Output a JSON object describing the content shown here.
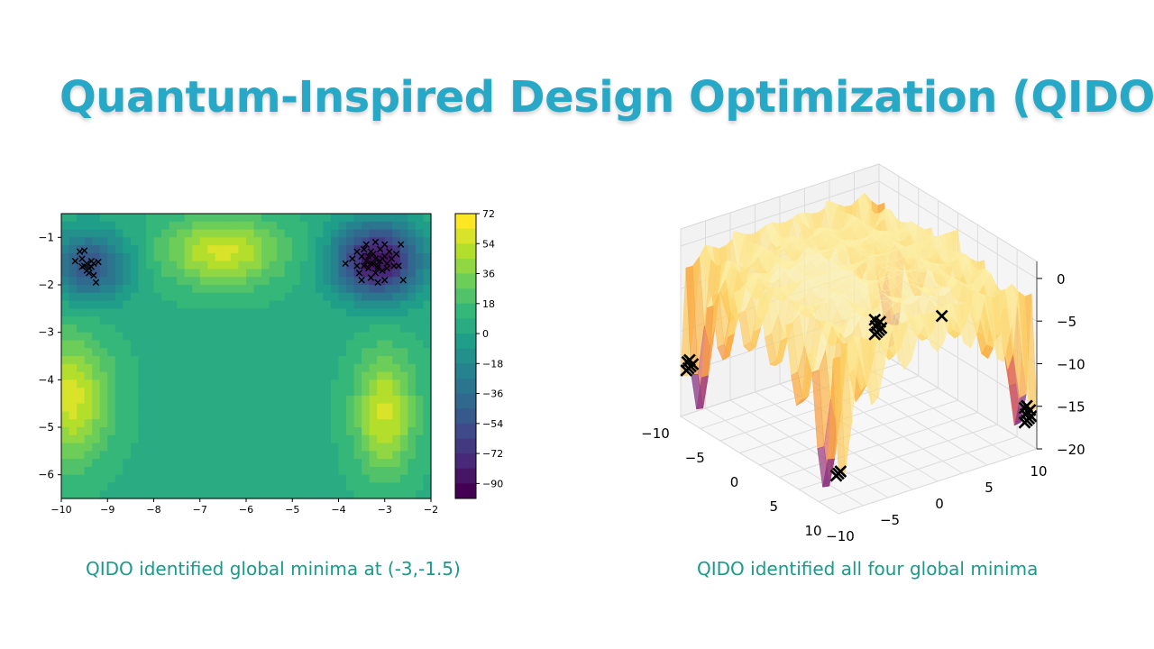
{
  "slide": {
    "title": "Quantum-Inspired Design Optimization (QIDO)",
    "caption_left": "QIDO identified global minima at (-3,-1.5)",
    "caption_right": "QIDO identified all four global minima"
  },
  "chart_data": [
    {
      "type": "heatmap",
      "subtype": "filled-contour",
      "title": "",
      "xlabel": "",
      "ylabel": "",
      "xlim": [
        -10,
        -2
      ],
      "ylim": [
        -6.5,
        -0.5
      ],
      "x_ticks": [
        -10,
        -9,
        -8,
        -7,
        -6,
        -5,
        -4,
        -3,
        -2
      ],
      "y_ticks": [
        -1,
        -2,
        -3,
        -4,
        -5,
        -6
      ],
      "colormap": "viridis",
      "colorbar": {
        "range": [
          -99,
          72
        ],
        "ticks": [
          72,
          54,
          36,
          18,
          0,
          -18,
          -36,
          -54,
          -72,
          -90
        ]
      },
      "field_features": [
        {
          "type": "minimum",
          "x": -3.15,
          "y": -1.5,
          "value": -95,
          "sx": 0.65,
          "sy": 0.55
        },
        {
          "type": "minimum",
          "x": -9.4,
          "y": -1.6,
          "value": -55,
          "sx": 0.6,
          "sy": 0.5
        },
        {
          "type": "maximum",
          "x": -6.5,
          "y": -1.3,
          "value": 60,
          "sx": 0.9,
          "sy": 0.5
        },
        {
          "type": "maximum",
          "x": -9.8,
          "y": -4.4,
          "value": 62,
          "sx": 0.6,
          "sy": 0.9
        },
        {
          "type": "maximum",
          "x": -3.0,
          "y": -4.7,
          "value": 60,
          "sx": 0.45,
          "sy": 0.9
        }
      ],
      "baseline_value": 8,
      "markers": {
        "symbol": "x",
        "points": [
          [
            -9.45,
            -1.55
          ],
          [
            -9.35,
            -1.5
          ],
          [
            -9.5,
            -1.6
          ],
          [
            -9.4,
            -1.65
          ],
          [
            -9.3,
            -1.55
          ],
          [
            -9.55,
            -1.45
          ],
          [
            -9.6,
            -1.3
          ],
          [
            -9.5,
            -1.28
          ],
          [
            -9.7,
            -1.5
          ],
          [
            -9.2,
            -1.52
          ],
          [
            -9.4,
            -1.75
          ],
          [
            -9.3,
            -1.8
          ],
          [
            -9.25,
            -1.95
          ],
          [
            -9.45,
            -1.7
          ],
          [
            -9.35,
            -1.62
          ],
          [
            -9.55,
            -1.62
          ],
          [
            -3.2,
            -1.45
          ],
          [
            -3.1,
            -1.5
          ],
          [
            -3.3,
            -1.55
          ],
          [
            -3.0,
            -1.4
          ],
          [
            -3.4,
            -1.5
          ],
          [
            -3.25,
            -1.35
          ],
          [
            -3.15,
            -1.6
          ],
          [
            -2.95,
            -1.55
          ],
          [
            -3.35,
            -1.65
          ],
          [
            -3.05,
            -1.7
          ],
          [
            -3.5,
            -1.4
          ],
          [
            -2.85,
            -1.45
          ],
          [
            -3.2,
            -1.75
          ],
          [
            -3.45,
            -1.25
          ],
          [
            -2.9,
            -1.3
          ],
          [
            -3.6,
            -1.6
          ],
          [
            -3.1,
            -1.25
          ],
          [
            -2.8,
            -1.6
          ],
          [
            -3.3,
            -1.85
          ],
          [
            -3.0,
            -1.9
          ],
          [
            -3.55,
            -1.75
          ],
          [
            -3.7,
            -1.45
          ],
          [
            -2.75,
            -1.35
          ],
          [
            -3.4,
            -1.15
          ],
          [
            -3.85,
            -1.55
          ],
          [
            -2.65,
            -1.15
          ],
          [
            -3.0,
            -1.15
          ],
          [
            -3.2,
            -1.1
          ],
          [
            -3.5,
            -1.9
          ],
          [
            -2.6,
            -1.9
          ],
          [
            -3.15,
            -1.95
          ],
          [
            -2.7,
            -1.6
          ],
          [
            -3.6,
            -1.3
          ],
          [
            -3.25,
            -1.55
          ],
          [
            -3.05,
            -1.45
          ],
          [
            -3.35,
            -1.4
          ],
          [
            -3.15,
            -1.65
          ],
          [
            -2.95,
            -1.65
          ],
          [
            -3.45,
            -1.6
          ],
          [
            -3.3,
            -1.3
          ]
        ]
      }
    },
    {
      "type": "surface3d",
      "title": "",
      "colormap": "inferno-like (purple to yellow)",
      "x_ticks": [
        -10,
        -5,
        0,
        5,
        10
      ],
      "y_ticks": [
        -10,
        -5,
        0,
        5,
        10
      ],
      "z_ticks": [
        0,
        -5,
        -10,
        -15,
        -20
      ],
      "grid": true,
      "global_minima": [
        {
          "x": -8.06,
          "y": 9.66,
          "z": -19.2
        },
        {
          "x": 8.06,
          "y": 9.66,
          "z": -19.2
        },
        {
          "x": -8.06,
          "y": -9.66,
          "z": -19.2
        },
        {
          "x": 8.06,
          "y": -9.66,
          "z": -19.2
        }
      ],
      "marker_clusters": [
        {
          "x": -9.5,
          "y": 9.5,
          "z": -17.5,
          "count": 8
        },
        {
          "x": 9.5,
          "y": 9.5,
          "z": -17.0,
          "count": 9
        },
        {
          "x": 9.5,
          "y": -9.5,
          "z": -16.0,
          "count": 3
        },
        {
          "x": -9.5,
          "y": -9.5,
          "z": -14.5,
          "count": 6
        },
        {
          "x": -1.0,
          "y": 9.5,
          "z": -10.5,
          "count": 1
        }
      ]
    }
  ]
}
